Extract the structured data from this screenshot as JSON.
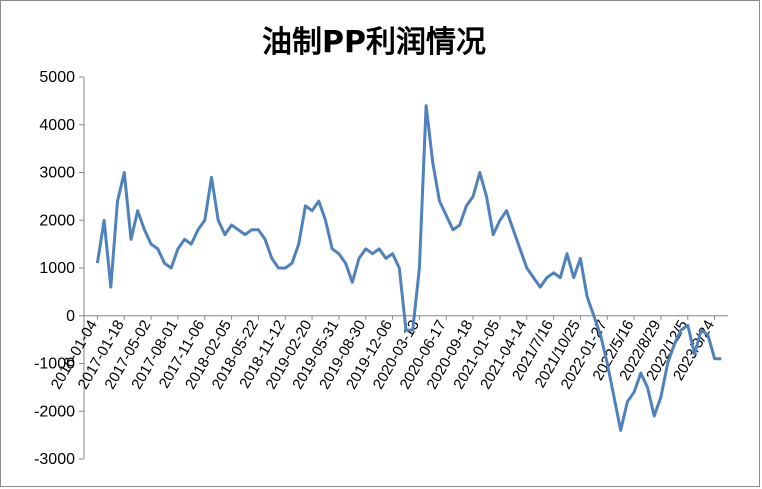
{
  "chart_data": {
    "type": "line",
    "title": "油制PP利润情况",
    "xlabel": "",
    "ylabel": "",
    "ylim": [
      -3000,
      5000
    ],
    "yticks": [
      -3000,
      -2000,
      -1000,
      0,
      1000,
      2000,
      3000,
      4000,
      5000
    ],
    "grid": false,
    "legend": "none",
    "line_color": "#4F81BD",
    "x_tick_labels": [
      "2016-01-04",
      "2017-01-18",
      "2017-05-02",
      "2017-08-01",
      "2017-11-06",
      "2018-02-05",
      "2018-05-22",
      "2018-11-12",
      "2019-02-20",
      "2019-05-31",
      "2019-08-30",
      "2019-12-06",
      "2020-03-13",
      "2020-06-17",
      "2020-09-18",
      "2021-01-05",
      "2021-04-14",
      "2021/7/16",
      "2021/10/25",
      "2022-01-27",
      "2022/5/16",
      "2022/8/29",
      "2022/12/5",
      "2023/3/24"
    ],
    "series": [
      {
        "name": "",
        "x": [
          0,
          0.25,
          0.5,
          0.75,
          1,
          1.25,
          1.5,
          1.75,
          2,
          2.25,
          2.5,
          2.75,
          3,
          3.25,
          3.5,
          3.75,
          4,
          4.25,
          4.5,
          4.75,
          5,
          5.25,
          5.5,
          5.75,
          6,
          6.25,
          6.5,
          6.75,
          7,
          7.25,
          7.5,
          7.75,
          8,
          8.25,
          8.5,
          8.75,
          9,
          9.25,
          9.5,
          9.75,
          10,
          10.25,
          10.5,
          10.75,
          11,
          11.25,
          11.5,
          11.75,
          12,
          12.25,
          12.5,
          12.75,
          13,
          13.25,
          13.5,
          13.75,
          14,
          14.25,
          14.5,
          14.75,
          15,
          15.25,
          15.5,
          15.75,
          16,
          16.25,
          16.5,
          16.75,
          17,
          17.25,
          17.5,
          17.75,
          18,
          18.25,
          18.5,
          18.75,
          19,
          19.25,
          19.5,
          19.75,
          20,
          20.25,
          20.5,
          20.75,
          21,
          21.25,
          21.5,
          21.75,
          22,
          22.25,
          22.5,
          22.75,
          23,
          23.25
        ],
        "values": [
          1100,
          2000,
          600,
          2400,
          3000,
          1600,
          2200,
          1800,
          1500,
          1400,
          1100,
          1000,
          1400,
          1600,
          1500,
          1800,
          2000,
          2900,
          2000,
          1700,
          1900,
          1800,
          1700,
          1800,
          1800,
          1600,
          1200,
          1000,
          1000,
          1100,
          1500,
          2300,
          2200,
          2400,
          2000,
          1400,
          1300,
          1100,
          700,
          1200,
          1400,
          1300,
          1400,
          1200,
          1300,
          1000,
          -300,
          -300,
          1000,
          4400,
          3200,
          2400,
          2100,
          1800,
          1900,
          2300,
          2500,
          3000,
          2500,
          1700,
          2000,
          2200,
          1800,
          1400,
          1000,
          800,
          600,
          800,
          900,
          800,
          1300,
          800,
          1200,
          400,
          0,
          -400,
          -1000,
          -1700,
          -2400,
          -1800,
          -1600,
          -1200,
          -1500,
          -2100,
          -1700,
          -1000,
          -600,
          -300,
          -200,
          -800,
          -300,
          -400,
          -900,
          -900
        ]
      }
    ]
  }
}
